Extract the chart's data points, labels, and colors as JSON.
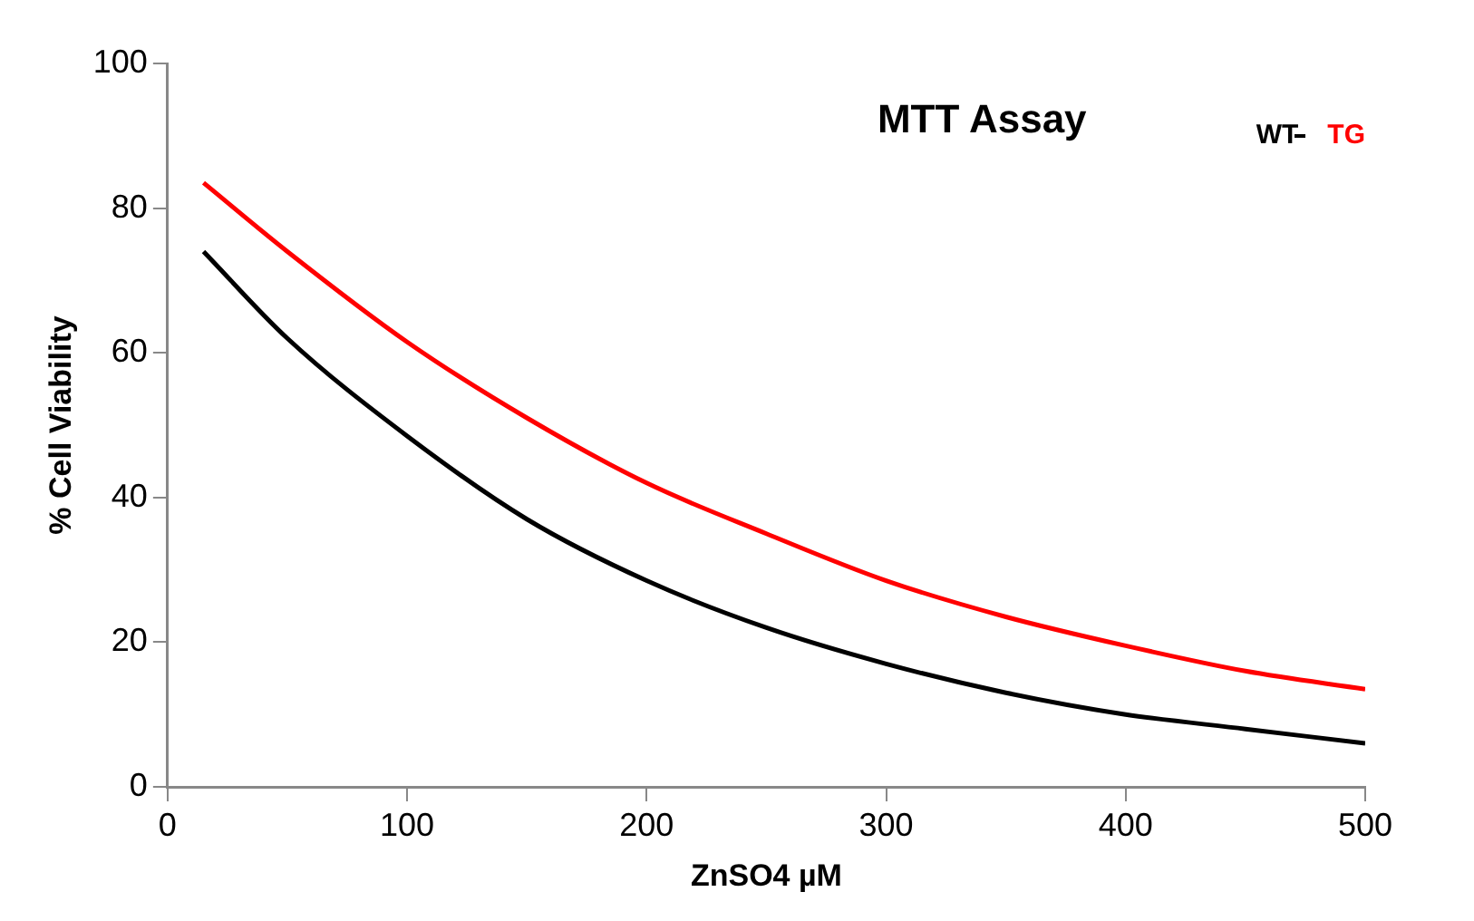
{
  "chart_data": {
    "type": "line",
    "title": "MTT Assay",
    "xlabel": "ZnSO4 µM",
    "ylabel": "% Cell Viability",
    "legend": "top right",
    "grid": false,
    "marker": "none",
    "line_style": "solid",
    "xlim": [
      0,
      500
    ],
    "xticks": [
      0,
      100,
      200,
      300,
      400,
      500
    ],
    "ylim": [
      0,
      100
    ],
    "yticks": [
      0,
      20,
      40,
      60,
      80,
      100
    ],
    "series": [
      {
        "name": "WT",
        "color": "#000000",
        "x": [
          15,
          50,
          100,
          150,
          200,
          250,
          300,
          350,
          400,
          450,
          500
        ],
        "values": [
          74,
          62,
          48.5,
          37,
          28.5,
          22,
          17,
          13,
          10,
          8,
          6
        ]
      },
      {
        "name": "TG",
        "color": "#ff0000",
        "x": [
          15,
          50,
          100,
          150,
          200,
          250,
          300,
          350,
          400,
          450,
          500
        ],
        "values": [
          83.5,
          74,
          61.5,
          51,
          42,
          35,
          28.5,
          23.5,
          19.5,
          16,
          13.5
        ]
      }
    ]
  }
}
